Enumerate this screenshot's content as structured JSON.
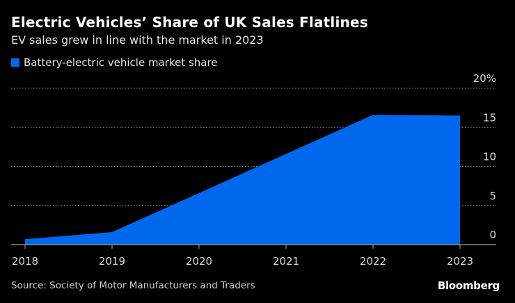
{
  "chart_data": {
    "type": "area",
    "title": "Electric Vehicles’ Share of UK Sales Flatlines",
    "subtitle": "EV sales grew in line with the market in 2023",
    "x": [
      "2018",
      "2019",
      "2020",
      "2021",
      "2022",
      "2023"
    ],
    "series": [
      {
        "name": "Battery-electric vehicle market share",
        "values": [
          0.7,
          1.6,
          6.6,
          11.6,
          16.6,
          16.5
        ],
        "color": "#0068ec"
      }
    ],
    "ylim": [
      0,
      20
    ],
    "yticks": [
      0,
      5,
      10,
      15,
      20
    ],
    "ytick_labels": [
      "0",
      "5",
      "10",
      "15",
      "20%"
    ],
    "grid": true,
    "legend_position": "top-left",
    "source": "Source: Society of Motor Manufacturers and Traders",
    "logo": "Bloomberg"
  }
}
